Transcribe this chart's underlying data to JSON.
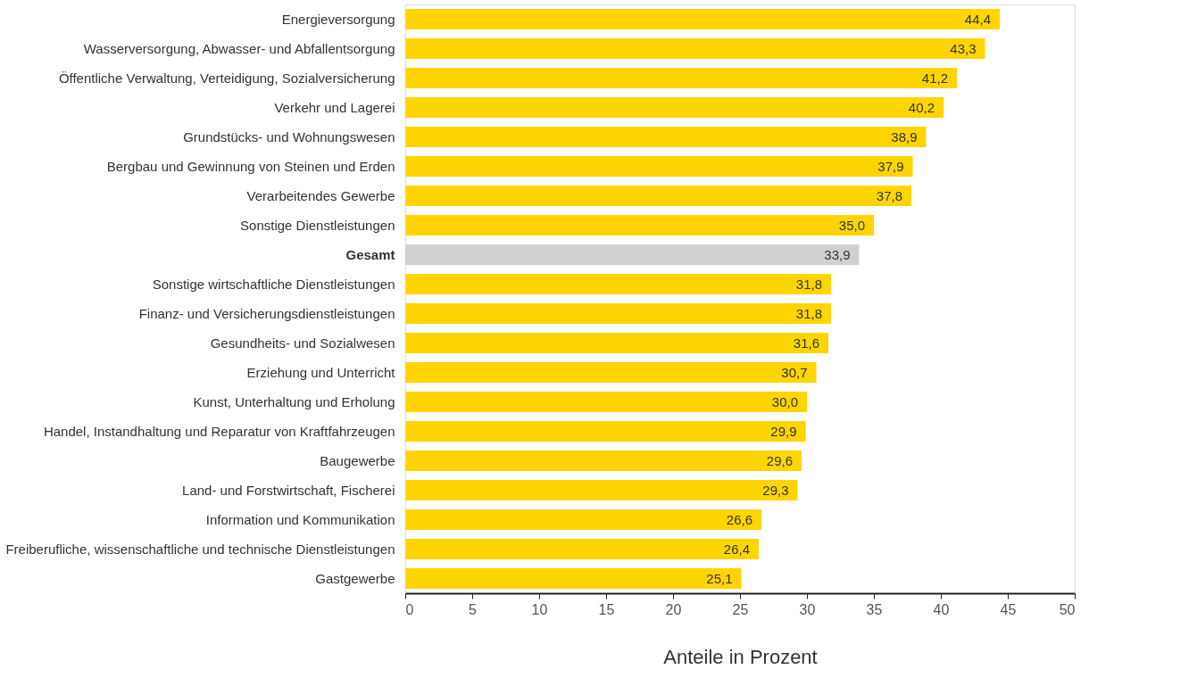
{
  "chart_data": {
    "type": "bar",
    "orientation": "horizontal",
    "xlabel": "Anteile in Prozent",
    "categories": [
      "Energieversorgung",
      "Wasserversorgung, Abwasser- und Abfallentsorgung",
      "Öffentliche Verwaltung, Verteidigung, Sozialversicherung",
      "Verkehr und Lagerei",
      "Grundstücks- und Wohnungswesen",
      "Bergbau und Gewinnung von Steinen und Erden",
      "Verarbeitendes Gewerbe",
      "Sonstige Dienstleistungen",
      "Gesamt",
      "Sonstige wirtschaftliche Dienstleistungen",
      "Finanz- und Versicherungsdienstleistungen",
      "Gesundheits- und Sozialwesen",
      "Erziehung und Unterricht",
      "Kunst, Unterhaltung und Erholung",
      "Handel, Instandhaltung und Reparatur von Kraftfahrzeugen",
      "Baugewerbe",
      "Land- und Forstwirtschaft, Fischerei",
      "Information und Kommunikation",
      "Freiberufliche, wissenschaftliche und technische Dienstleistungen",
      "Gastgewerbe"
    ],
    "values": [
      44.4,
      43.3,
      41.2,
      40.2,
      38.9,
      37.9,
      37.8,
      35.0,
      33.9,
      31.8,
      31.8,
      31.6,
      30.7,
      30.0,
      29.9,
      29.6,
      29.3,
      26.6,
      26.4,
      25.1
    ],
    "value_labels": [
      "44,4",
      "43,3",
      "41,2",
      "40,2",
      "38,9",
      "37,9",
      "37,8",
      "35,0",
      "33,9",
      "31,8",
      "31,8",
      "31,6",
      "30,7",
      "30,0",
      "29,9",
      "29,6",
      "29,3",
      "26,6",
      "26,4",
      "25,1"
    ],
    "colors": [
      "#ffd500",
      "#ffd500",
      "#ffd500",
      "#ffd500",
      "#ffd500",
      "#ffd500",
      "#ffd500",
      "#ffd500",
      "#d0d0d2",
      "#ffd500",
      "#ffd500",
      "#ffd500",
      "#ffd500",
      "#ffd500",
      "#ffd500",
      "#ffd500",
      "#ffd500",
      "#ffd500",
      "#ffd500",
      "#ffd500"
    ],
    "xlim": [
      0,
      50
    ],
    "xticks": [
      0,
      5,
      10,
      15,
      20,
      25,
      30,
      35,
      40,
      45,
      50
    ],
    "grid": false
  }
}
